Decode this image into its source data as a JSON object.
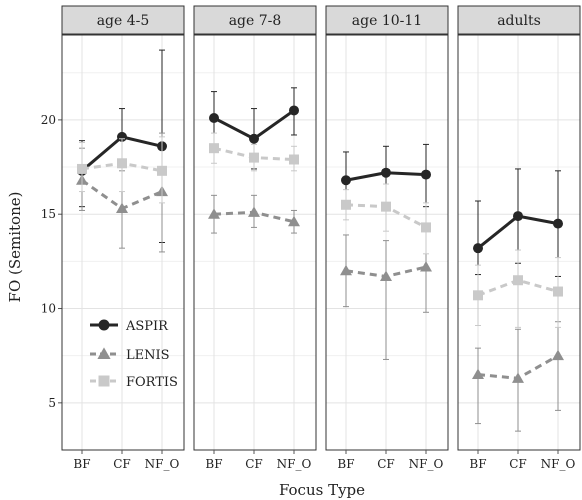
{
  "chart_data": {
    "type": "line",
    "xlabel": "Focus Type",
    "ylabel": "FO (Semitone)",
    "ylim": [
      2.5,
      24.5
    ],
    "yticks": [
      5,
      10,
      15,
      20
    ],
    "categories": [
      "BF",
      "CF",
      "NF_O"
    ],
    "grid": true,
    "legend_position": "bottom-left inside first panel",
    "series_styles": [
      {
        "name": "ASPIR",
        "color": "#262626",
        "line": "solid",
        "marker": "circle"
      },
      {
        "name": "LENIS",
        "color": "#8f8f8f",
        "line": "dashed",
        "marker": "triangle"
      },
      {
        "name": "FORTIS",
        "color": "#c9c9c9",
        "line": "dashed",
        "marker": "square"
      }
    ],
    "panels": [
      {
        "label": "age 4-5",
        "series": [
          {
            "name": "ASPIR",
            "values": [
              17.3,
              19.1,
              18.6
            ],
            "err_low": [
              15.4,
              17.7,
              13.5
            ],
            "err_high": [
              18.9,
              20.6,
              23.7
            ]
          },
          {
            "name": "LENIS",
            "values": [
              16.8,
              15.3,
              16.2
            ],
            "err_low": [
              15.2,
              13.2,
              13.0
            ],
            "err_high": [
              18.5,
              17.3,
              19.3
            ]
          },
          {
            "name": "FORTIS",
            "values": [
              17.4,
              17.7,
              17.3
            ],
            "err_low": [
              16.2,
              16.2,
              15.6
            ],
            "err_high": [
              18.8,
              19.0,
              19.1
            ]
          }
        ]
      },
      {
        "label": "age 7-8",
        "series": [
          {
            "name": "ASPIR",
            "values": [
              20.1,
              19.0,
              20.5
            ],
            "err_low": [
              18.7,
              17.4,
              19.2
            ],
            "err_high": [
              21.5,
              20.6,
              21.7
            ]
          },
          {
            "name": "LENIS",
            "values": [
              15.0,
              15.1,
              14.6
            ],
            "err_low": [
              14.0,
              14.3,
              14.0
            ],
            "err_high": [
              16.0,
              16.0,
              15.2
            ]
          },
          {
            "name": "FORTIS",
            "values": [
              18.5,
              18.0,
              17.9
            ],
            "err_low": [
              17.7,
              17.3,
              17.3
            ],
            "err_high": [
              19.3,
              18.7,
              18.6
            ]
          }
        ]
      },
      {
        "label": "age 10-11",
        "series": [
          {
            "name": "ASPIR",
            "values": [
              16.8,
              17.2,
              17.1
            ],
            "err_low": [
              15.3,
              15.6,
              15.4
            ],
            "err_high": [
              18.3,
              18.6,
              18.7
            ]
          },
          {
            "name": "LENIS",
            "values": [
              12.0,
              11.7,
              12.2
            ],
            "err_low": [
              10.1,
              7.3,
              9.8
            ],
            "err_high": [
              13.9,
              13.6,
              14.5
            ]
          },
          {
            "name": "FORTIS",
            "values": [
              15.5,
              15.4,
              14.3
            ],
            "err_low": [
              14.7,
              14.1,
              12.9
            ],
            "err_high": [
              16.3,
              16.6,
              15.6
            ]
          }
        ]
      },
      {
        "label": "adults",
        "series": [
          {
            "name": "ASPIR",
            "values": [
              13.2,
              14.9,
              14.5
            ],
            "err_low": [
              11.8,
              12.4,
              11.7
            ],
            "err_high": [
              15.7,
              17.4,
              17.3
            ]
          },
          {
            "name": "LENIS",
            "values": [
              6.5,
              6.3,
              7.5
            ],
            "err_low": [
              3.9,
              3.5,
              4.6
            ],
            "err_high": [
              7.9,
              8.9,
              9.3
            ]
          },
          {
            "name": "FORTIS",
            "values": [
              10.7,
              11.5,
              10.9
            ],
            "err_low": [
              9.1,
              9.0,
              9.0
            ],
            "err_high": [
              12.3,
              13.1,
              12.7
            ]
          }
        ]
      }
    ]
  }
}
